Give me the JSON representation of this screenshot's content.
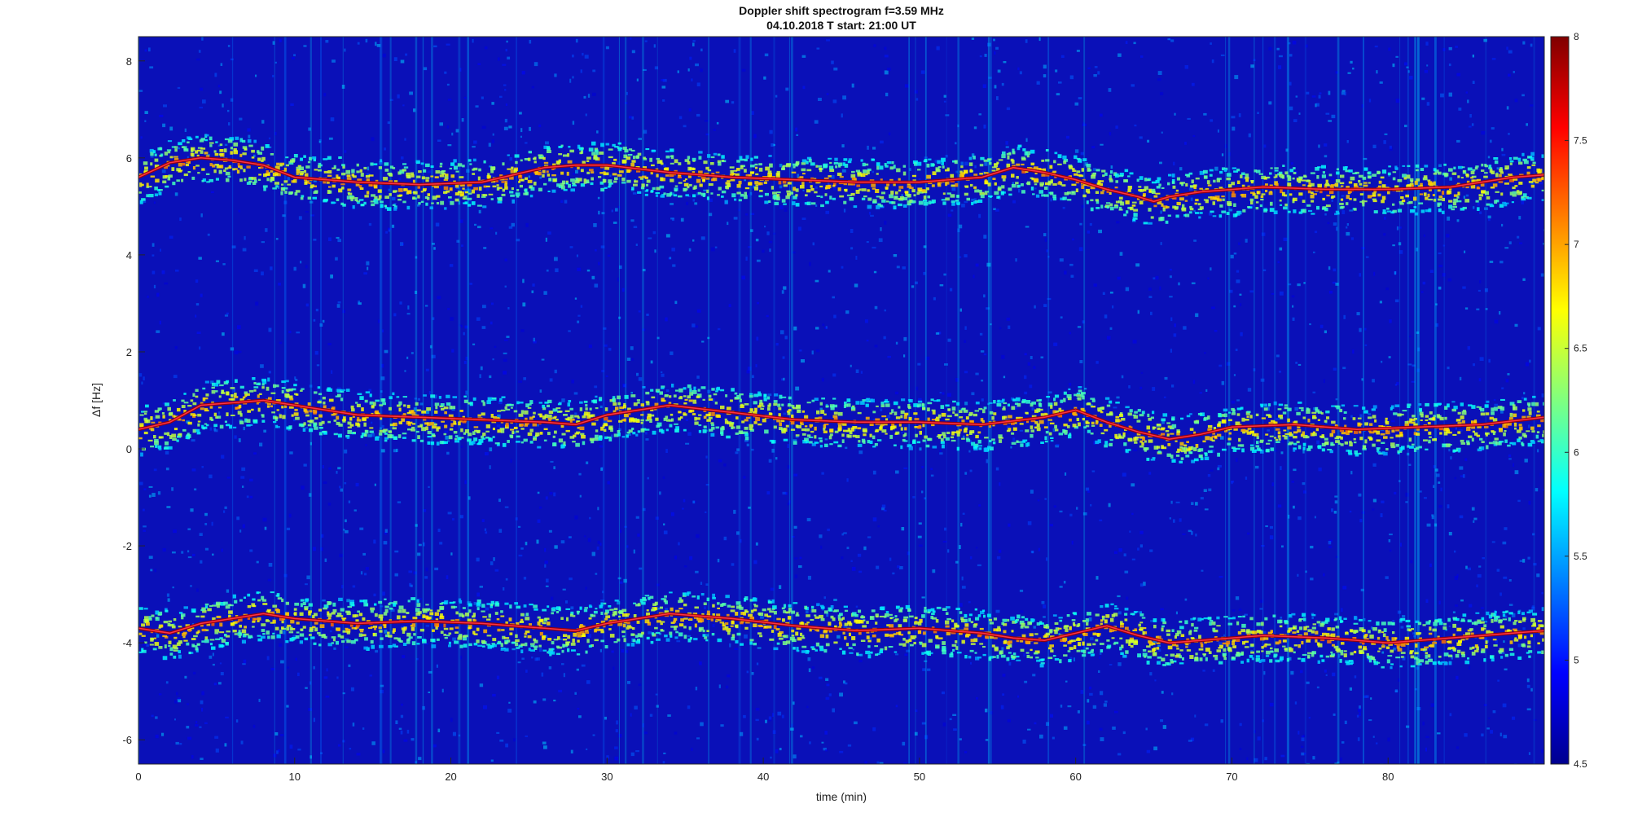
{
  "chart_data": {
    "type": "heatmap",
    "title": "Doppler shift spectrogram f=3.59 MHz",
    "subtitle": "04.10.2018    T start: 21:00 UT",
    "xlabel": "time (min)",
    "ylabel": "Δf [Hz]",
    "xlim": [
      0,
      90
    ],
    "ylim": [
      -6.5,
      8.5
    ],
    "x_ticks": [
      0,
      10,
      20,
      30,
      40,
      50,
      60,
      70,
      80
    ],
    "y_ticks": [
      -6,
      -4,
      -2,
      0,
      2,
      4,
      6,
      8
    ],
    "colormap": "jet",
    "colorbar": {
      "range": [
        4.5,
        8
      ],
      "ticks": [
        "8",
        "7.5",
        "7",
        "6.5",
        "6",
        "5.5",
        "5",
        "4.5"
      ]
    },
    "background_level": 4.8,
    "series": [
      {
        "x": [
          0,
          2,
          4,
          6,
          8,
          10,
          14,
          18,
          22,
          26,
          28,
          30,
          34,
          38,
          42,
          46,
          50,
          54,
          56,
          58,
          60,
          62,
          64,
          65,
          66,
          68,
          72,
          76,
          80,
          84,
          88,
          90
        ],
        "y": [
          5.6,
          5.9,
          6.0,
          5.95,
          5.85,
          5.6,
          5.5,
          5.45,
          5.5,
          5.8,
          5.85,
          5.85,
          5.7,
          5.6,
          5.55,
          5.5,
          5.5,
          5.6,
          5.8,
          5.7,
          5.55,
          5.35,
          5.2,
          5.1,
          5.2,
          5.3,
          5.4,
          5.35,
          5.35,
          5.4,
          5.6,
          5.65
        ]
      },
      {
        "x": [
          0,
          2,
          4,
          6,
          8,
          10,
          14,
          18,
          22,
          26,
          28,
          30,
          34,
          38,
          42,
          46,
          50,
          54,
          58,
          60,
          62,
          64,
          66,
          68,
          70,
          74,
          78,
          82,
          86,
          90
        ],
        "y": [
          0.4,
          0.55,
          0.9,
          0.95,
          1.0,
          0.9,
          0.7,
          0.65,
          0.6,
          0.55,
          0.5,
          0.7,
          0.9,
          0.75,
          0.6,
          0.55,
          0.55,
          0.5,
          0.65,
          0.8,
          0.55,
          0.35,
          0.2,
          0.3,
          0.45,
          0.5,
          0.4,
          0.45,
          0.5,
          0.65
        ]
      },
      {
        "x": [
          0,
          2,
          4,
          6,
          8,
          10,
          14,
          18,
          22,
          26,
          28,
          30,
          34,
          38,
          42,
          46,
          50,
          54,
          56,
          58,
          60,
          62,
          64,
          66,
          68,
          72,
          76,
          80,
          84,
          88,
          90
        ],
        "y": [
          -3.7,
          -3.8,
          -3.6,
          -3.5,
          -3.4,
          -3.5,
          -3.6,
          -3.55,
          -3.6,
          -3.7,
          -3.75,
          -3.6,
          -3.4,
          -3.5,
          -3.65,
          -3.75,
          -3.7,
          -3.8,
          -3.9,
          -3.95,
          -3.8,
          -3.65,
          -3.85,
          -4.0,
          -3.95,
          -3.85,
          -3.9,
          -4.0,
          -3.9,
          -3.8,
          -3.75
        ]
      }
    ]
  }
}
